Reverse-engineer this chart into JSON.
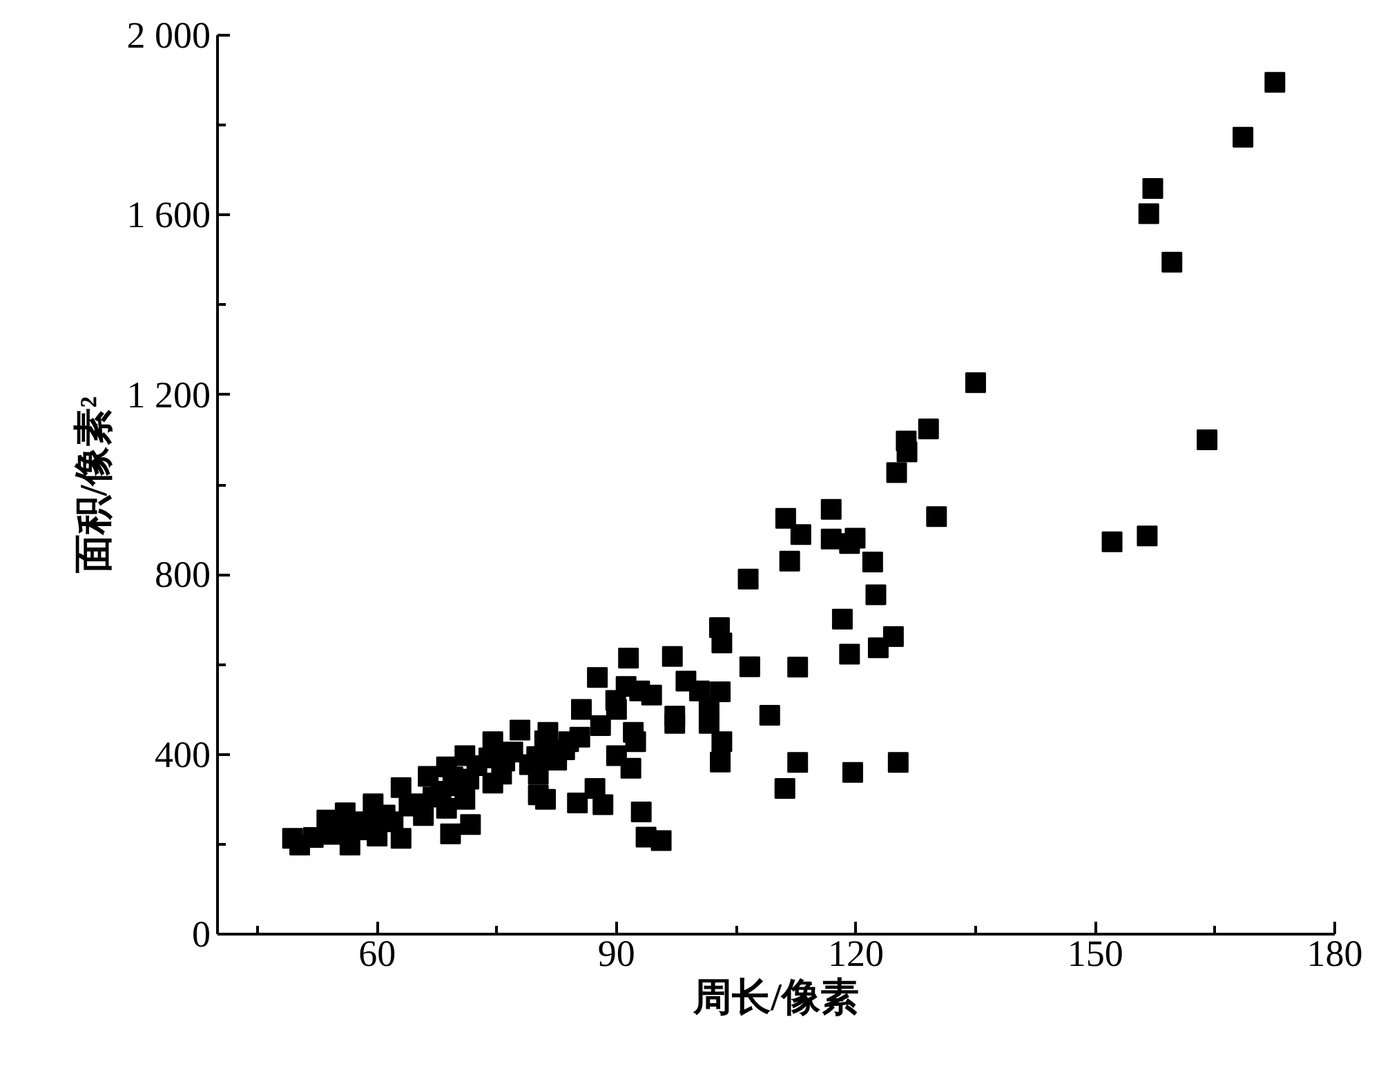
{
  "chart_data": {
    "type": "scatter",
    "xlabel": "周长/像素",
    "ylabel": "面积/像素²",
    "marker": "square",
    "grid": false,
    "xlim": [
      40,
      180
    ],
    "xticks": [
      {
        "value": 45,
        "label": null
      },
      60,
      {
        "value": 75,
        "label": null
      },
      90,
      {
        "value": 105,
        "label": null
      },
      120,
      {
        "value": 135,
        "label": null
      },
      150,
      {
        "value": 165,
        "label": null
      },
      180
    ],
    "ylim": [
      0,
      2000
    ],
    "yticks": [
      0,
      {
        "value": 200,
        "label": null
      },
      400,
      {
        "value": 600,
        "label": null
      },
      800,
      {
        "value": 1000,
        "label": null
      },
      {
        "value": 1200,
        "label": "1 200"
      },
      {
        "value": 1400,
        "label": null
      },
      {
        "value": 1600,
        "label": "1 600"
      },
      {
        "value": 1800,
        "label": null
      },
      {
        "value": 2000,
        "label": "2 000"
      }
    ],
    "series": [
      {
        "color": "#000000",
        "x": [
          172.5,
          168.5,
          157.2,
          156.7,
          159.6,
          164.0,
          152.1,
          156.5,
          135.0,
          129.1,
          126.3,
          126.4,
          125.1,
          116.9,
          130.1,
          113.1,
          116.9,
          119.2,
          119.9,
          122.1,
          122.5,
          118.3,
          124.7,
          122.8,
          119.2,
          112.7,
          112.7,
          119.6,
          125.3,
          111.2,
          111.7,
          106.5,
          102.9,
          103.2,
          91.5,
          97.0,
          106.7,
          87.6,
          98.7,
          100.4,
          103.0,
          91.2,
          92.9,
          94.4,
          89.9,
          85.6,
          97.3,
          97.3,
          101.6,
          101.6,
          109.2,
          88.0,
          90.0,
          92.1,
          92.4,
          90.0,
          91.8,
          103.2,
          103.0,
          111.1,
          87.3,
          85.1,
          88.3,
          93.1,
          93.7,
          95.6,
          49.4,
          53.7,
          56.0,
          59.5,
          63.0,
          66.4,
          68.7,
          71.0,
          74.5,
          77.9,
          81.4,
          85.4,
          50.3,
          56.6,
          60.0,
          63.0,
          65.8,
          68.7,
          71.0,
          74.5,
          75.6,
          79.1,
          82.5,
          69.2,
          71.7,
          80.2,
          81.1,
          80.2,
          52.0,
          55.0,
          58.0,
          61.0,
          64.0,
          67.0,
          70.0,
          76.0,
          54.5,
          57.5,
          60.5,
          62.0,
          65.0,
          68.0,
          69.5,
          71.5,
          72.5,
          74.0,
          77.0,
          80.0,
          81.0,
          83.5,
          84.0
        ],
        "values": [
          1895,
          1773,
          1659,
          1603,
          1495,
          1100,
          873,
          886,
          1227,
          1124,
          1097,
          1073,
          1027,
          945,
          929,
          889,
          879,
          869,
          881,
          828,
          755,
          701,
          662,
          637,
          623,
          594,
          382,
          360,
          382,
          925,
          830,
          790,
          682,
          648,
          614,
          618,
          595,
          571,
          563,
          541,
          539,
          551,
          541,
          532,
          520,
          500,
          485,
          469,
          505,
          469,
          487,
          464,
          500,
          449,
          428,
          397,
          369,
          428,
          383,
          324,
          324,
          292,
          288,
          272,
          216,
          208,
          213,
          254,
          270,
          290,
          326,
          351,
          372,
          397,
          428,
          454,
          449,
          438,
          198,
          198,
          218,
          213,
          264,
          280,
          300,
          336,
          356,
          377,
          387,
          223,
          244,
          310,
          300,
          356,
          215,
          235,
          250,
          265,
          285,
          305,
          330,
          385,
          222,
          232,
          262,
          250,
          290,
          318,
          350,
          345,
          375,
          392,
          405,
          395,
          430,
          410,
          428
        ]
      }
    ]
  }
}
